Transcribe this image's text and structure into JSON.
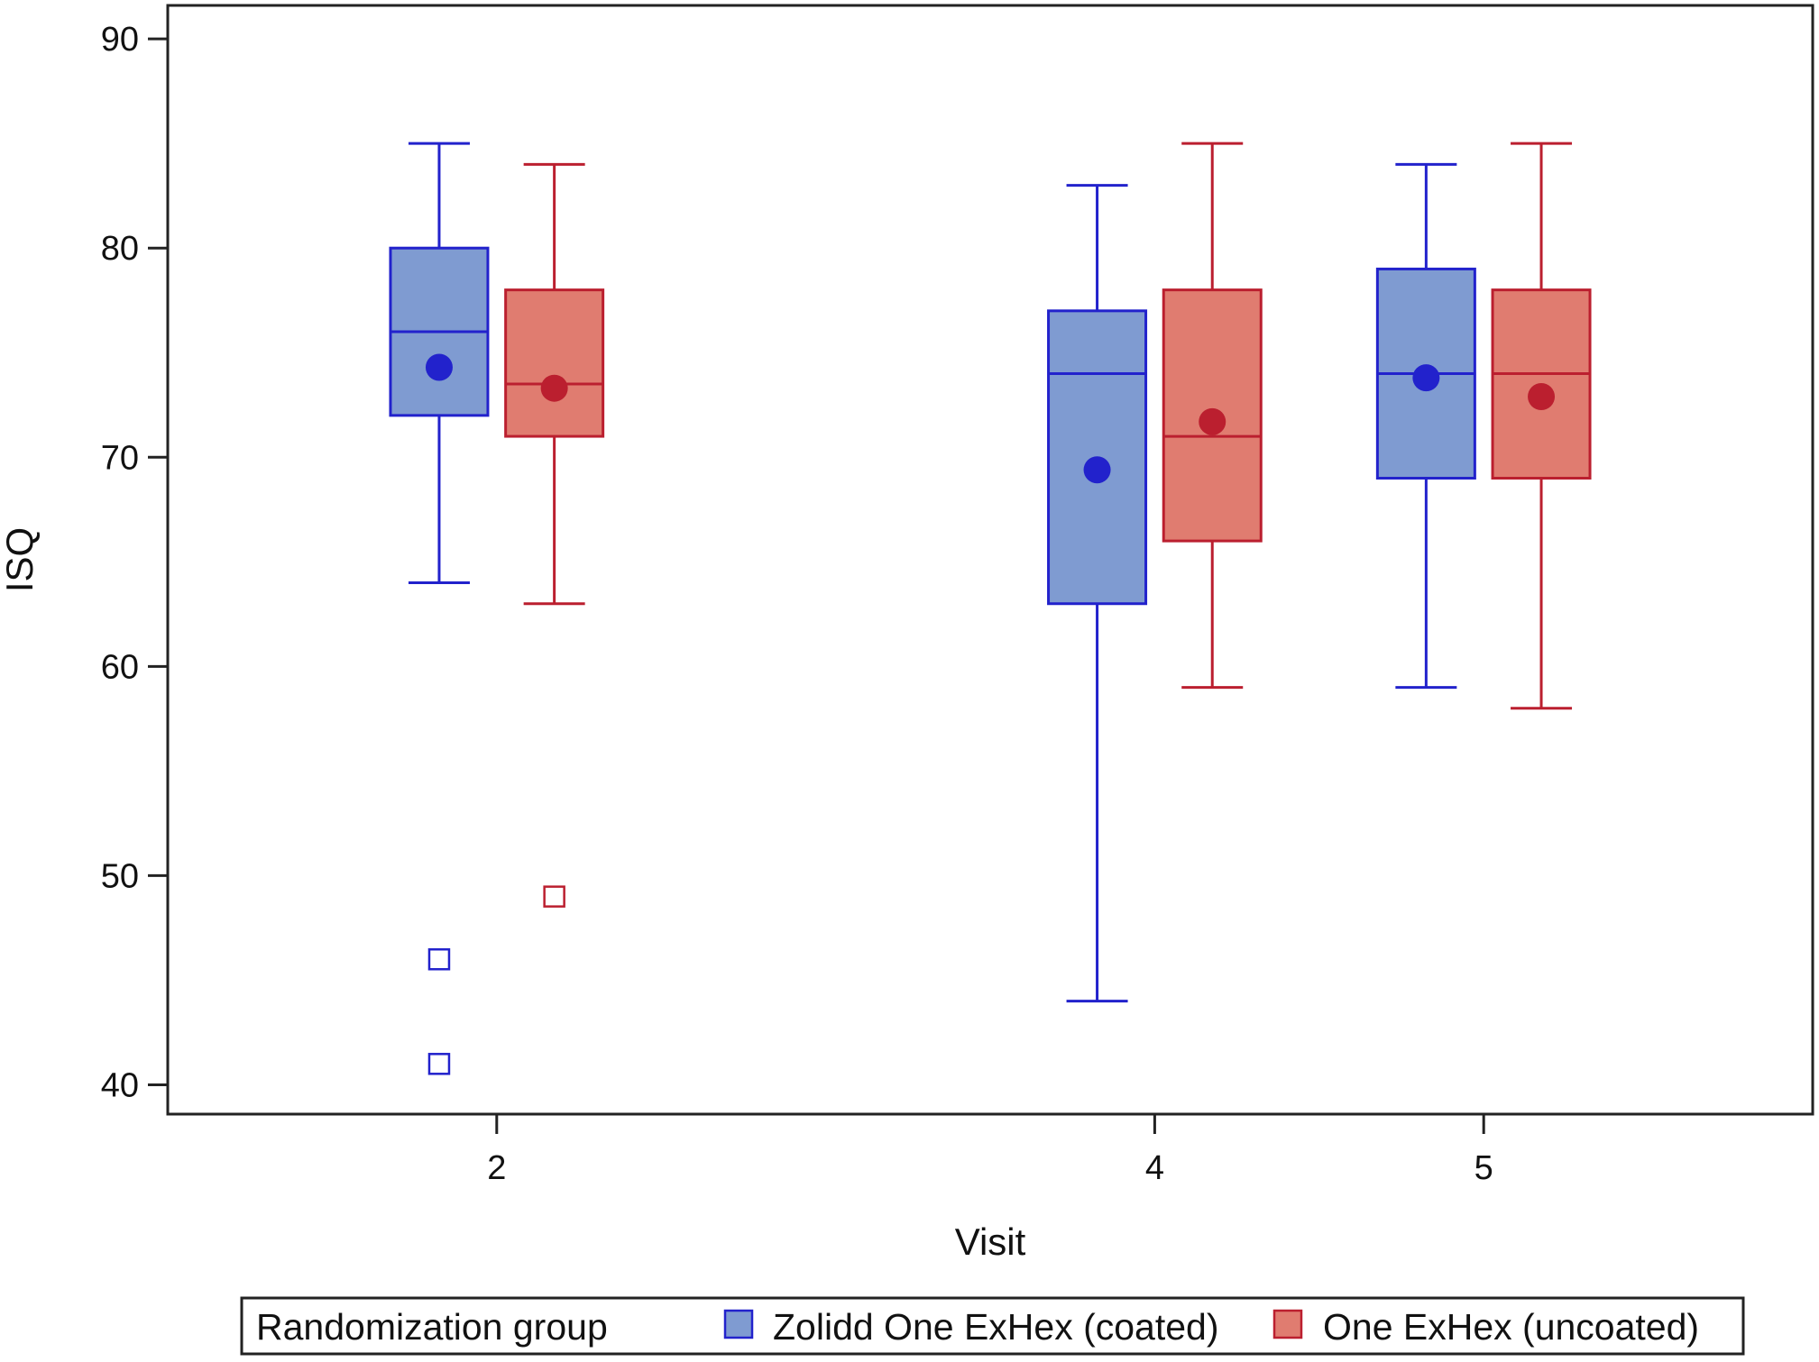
{
  "chart_data": {
    "type": "box",
    "title": "",
    "xlabel": "Visit",
    "ylabel": "ISQ",
    "ylim": [
      38.6,
      91.6
    ],
    "yticks": [
      40,
      50,
      60,
      70,
      80,
      90
    ],
    "x_axis": {
      "categories": [
        "2",
        "4",
        "5"
      ],
      "positions": [
        2,
        4,
        5
      ],
      "range": [
        1,
        6
      ]
    },
    "grid": false,
    "legend": {
      "placement": "bottom",
      "title": "Randomization group",
      "entries": [
        {
          "label": "Zolidd One ExHex (coated)",
          "color": "#2222cc",
          "fill": "#7f9bd1"
        },
        {
          "label": "One ExHex (uncoated)",
          "color": "#bb1f2f",
          "fill": "#e07c70"
        }
      ]
    },
    "series": [
      {
        "name": "Zolidd One ExHex (coated)",
        "color": "#2222cc",
        "fill": "#7f9bd1",
        "boxes": [
          {
            "visit": "2",
            "whisker_low": 64,
            "q1": 72,
            "median": 76,
            "q3": 80,
            "whisker_high": 85,
            "mean": 74.3,
            "outliers": [
              46,
              41
            ]
          },
          {
            "visit": "4",
            "whisker_low": 44,
            "q1": 63,
            "median": 74,
            "q3": 77,
            "whisker_high": 83,
            "mean": 69.4,
            "outliers": []
          },
          {
            "visit": "5",
            "whisker_low": 59,
            "q1": 69,
            "median": 74,
            "q3": 79,
            "whisker_high": 84,
            "mean": 73.8,
            "outliers": []
          }
        ]
      },
      {
        "name": "One ExHex (uncoated)",
        "color": "#bb1f2f",
        "fill": "#e07c70",
        "boxes": [
          {
            "visit": "2",
            "whisker_low": 63,
            "q1": 71,
            "median": 73.5,
            "q3": 78,
            "whisker_high": 84,
            "mean": 73.3,
            "outliers": [
              49
            ]
          },
          {
            "visit": "4",
            "whisker_low": 59,
            "q1": 66,
            "median": 71,
            "q3": 78,
            "whisker_high": 85,
            "mean": 71.7,
            "outliers": []
          },
          {
            "visit": "5",
            "whisker_low": 58,
            "q1": 69,
            "median": 74,
            "q3": 78,
            "whisker_high": 85,
            "mean": 72.9,
            "outliers": []
          }
        ]
      }
    ]
  }
}
